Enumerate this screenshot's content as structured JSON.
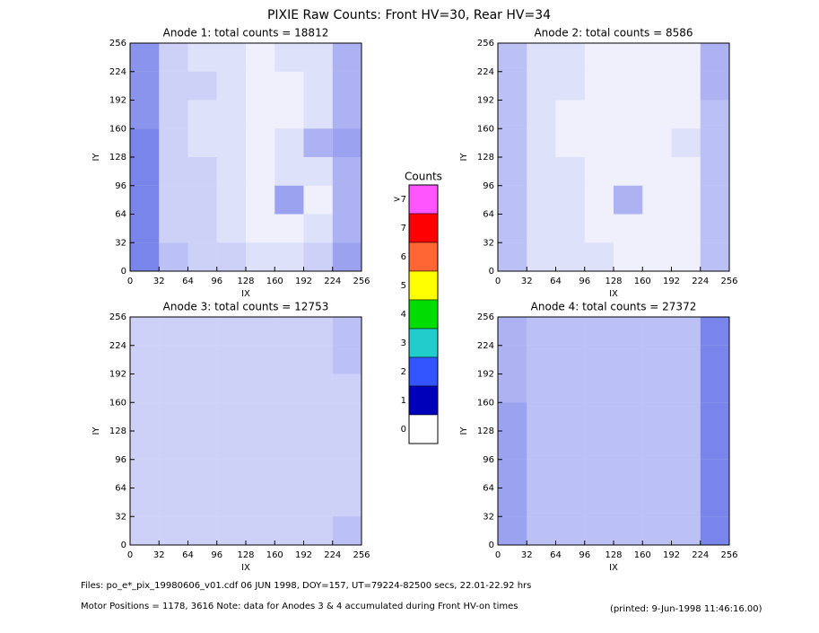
{
  "title": "PIXIE Raw Counts:  Front HV=30, Rear HV=34",
  "chart_data": [
    {
      "type": "heatmap",
      "title": "Anode 1: total counts = 18812",
      "xlabel": "IX",
      "ylabel": "IY",
      "xlim": [
        0,
        256
      ],
      "ylim": [
        0,
        256
      ],
      "xticks": [
        0,
        32,
        64,
        96,
        128,
        160,
        192,
        224,
        256
      ],
      "yticks": [
        0,
        32,
        64,
        96,
        128,
        160,
        192,
        224,
        256
      ],
      "color": "#2233dd",
      "values": [
        [
          0.7,
          0.3,
          0.2,
          0.2,
          0.1,
          0.2,
          0.2,
          0.5
        ],
        [
          0.7,
          0.3,
          0.3,
          0.2,
          0.1,
          0.1,
          0.2,
          0.5
        ],
        [
          0.7,
          0.3,
          0.2,
          0.2,
          0.1,
          0.1,
          0.2,
          0.5
        ],
        [
          0.8,
          0.3,
          0.2,
          0.2,
          0.1,
          0.2,
          0.5,
          0.6
        ],
        [
          0.8,
          0.3,
          0.3,
          0.2,
          0.1,
          0.2,
          0.2,
          0.5
        ],
        [
          0.8,
          0.3,
          0.3,
          0.2,
          0.1,
          0.6,
          0.1,
          0.5
        ],
        [
          0.8,
          0.3,
          0.3,
          0.2,
          0.1,
          0.1,
          0.2,
          0.5
        ],
        [
          0.8,
          0.4,
          0.3,
          0.3,
          0.2,
          0.2,
          0.3,
          0.6
        ]
      ]
    },
    {
      "type": "heatmap",
      "title": "Anode 2: total counts = 8586",
      "xlabel": "IX",
      "ylabel": "IY",
      "xlim": [
        0,
        256
      ],
      "ylim": [
        0,
        256
      ],
      "xticks": [
        0,
        32,
        64,
        96,
        128,
        160,
        192,
        224,
        256
      ],
      "yticks": [
        0,
        32,
        64,
        96,
        128,
        160,
        192,
        224,
        256
      ],
      "color": "#2233dd",
      "values": [
        [
          0.4,
          0.2,
          0.2,
          0.1,
          0.1,
          0.1,
          0.1,
          0.5
        ],
        [
          0.4,
          0.2,
          0.2,
          0.1,
          0.1,
          0.1,
          0.1,
          0.5
        ],
        [
          0.4,
          0.2,
          0.1,
          0.1,
          0.1,
          0.1,
          0.1,
          0.4
        ],
        [
          0.4,
          0.2,
          0.1,
          0.1,
          0.1,
          0.1,
          0.2,
          0.4
        ],
        [
          0.4,
          0.2,
          0.2,
          0.1,
          0.1,
          0.1,
          0.1,
          0.4
        ],
        [
          0.4,
          0.2,
          0.2,
          0.1,
          0.5,
          0.1,
          0.1,
          0.4
        ],
        [
          0.4,
          0.2,
          0.2,
          0.1,
          0.1,
          0.1,
          0.1,
          0.4
        ],
        [
          0.4,
          0.2,
          0.2,
          0.2,
          0.1,
          0.1,
          0.1,
          0.4
        ]
      ]
    },
    {
      "type": "heatmap",
      "title": "Anode 3: total counts = 12753",
      "xlabel": "IX",
      "ylabel": "IY",
      "xlim": [
        0,
        256
      ],
      "ylim": [
        0,
        256
      ],
      "xticks": [
        0,
        32,
        64,
        96,
        128,
        160,
        192,
        224,
        256
      ],
      "yticks": [
        0,
        32,
        64,
        96,
        128,
        160,
        192,
        224,
        256
      ],
      "color": "#2233dd",
      "values": [
        [
          0.3,
          0.3,
          0.3,
          0.3,
          0.3,
          0.3,
          0.3,
          0.4
        ],
        [
          0.3,
          0.3,
          0.3,
          0.3,
          0.3,
          0.3,
          0.3,
          0.4
        ],
        [
          0.3,
          0.3,
          0.3,
          0.3,
          0.3,
          0.3,
          0.3,
          0.3
        ],
        [
          0.3,
          0.3,
          0.3,
          0.3,
          0.3,
          0.3,
          0.3,
          0.3
        ],
        [
          0.3,
          0.3,
          0.3,
          0.3,
          0.3,
          0.3,
          0.3,
          0.3
        ],
        [
          0.3,
          0.3,
          0.3,
          0.3,
          0.3,
          0.3,
          0.3,
          0.3
        ],
        [
          0.3,
          0.3,
          0.3,
          0.3,
          0.3,
          0.3,
          0.3,
          0.3
        ],
        [
          0.3,
          0.3,
          0.3,
          0.3,
          0.3,
          0.3,
          0.3,
          0.4
        ]
      ]
    },
    {
      "type": "heatmap",
      "title": "Anode 4: total counts = 27372",
      "xlabel": "IX",
      "ylabel": "IY",
      "xlim": [
        0,
        256
      ],
      "ylim": [
        0,
        256
      ],
      "xticks": [
        0,
        32,
        64,
        96,
        128,
        160,
        192,
        224,
        256
      ],
      "yticks": [
        0,
        32,
        64,
        96,
        128,
        160,
        192,
        224,
        256
      ],
      "color": "#2233dd",
      "values": [
        [
          0.5,
          0.4,
          0.4,
          0.4,
          0.4,
          0.4,
          0.4,
          0.8
        ],
        [
          0.5,
          0.4,
          0.4,
          0.4,
          0.4,
          0.4,
          0.4,
          0.8
        ],
        [
          0.5,
          0.4,
          0.4,
          0.4,
          0.4,
          0.4,
          0.4,
          0.8
        ],
        [
          0.6,
          0.4,
          0.4,
          0.4,
          0.4,
          0.4,
          0.4,
          0.8
        ],
        [
          0.6,
          0.4,
          0.4,
          0.4,
          0.4,
          0.4,
          0.4,
          0.8
        ],
        [
          0.6,
          0.4,
          0.4,
          0.4,
          0.4,
          0.4,
          0.4,
          0.8
        ],
        [
          0.6,
          0.4,
          0.4,
          0.4,
          0.4,
          0.4,
          0.4,
          0.8
        ],
        [
          0.6,
          0.4,
          0.4,
          0.4,
          0.4,
          0.4,
          0.4,
          0.8
        ]
      ]
    }
  ],
  "colorbar": {
    "title": "Counts",
    "labels": [
      ">7",
      "7",
      "6",
      "5",
      "4",
      "3",
      "2",
      "1",
      "0"
    ],
    "colors": [
      "#ff55ff",
      "#ff0000",
      "#ff6633",
      "#ffff00",
      "#00dd00",
      "#22cccc",
      "#3355ff",
      "#0000bb",
      "#ffffff"
    ]
  },
  "footer": {
    "files": "Files: po_e*_pix_19980606_v01.cdf    06 JUN 1998, DOY=157, UT=79224-82500 secs, 22.01-22.92 hrs",
    "motor": "Motor Positions = 1178, 3616   Note: data for Anodes 3 & 4 accumulated during Front HV-on times",
    "printed": "(printed:  9-Jun-1998 11:46:16.00)"
  }
}
